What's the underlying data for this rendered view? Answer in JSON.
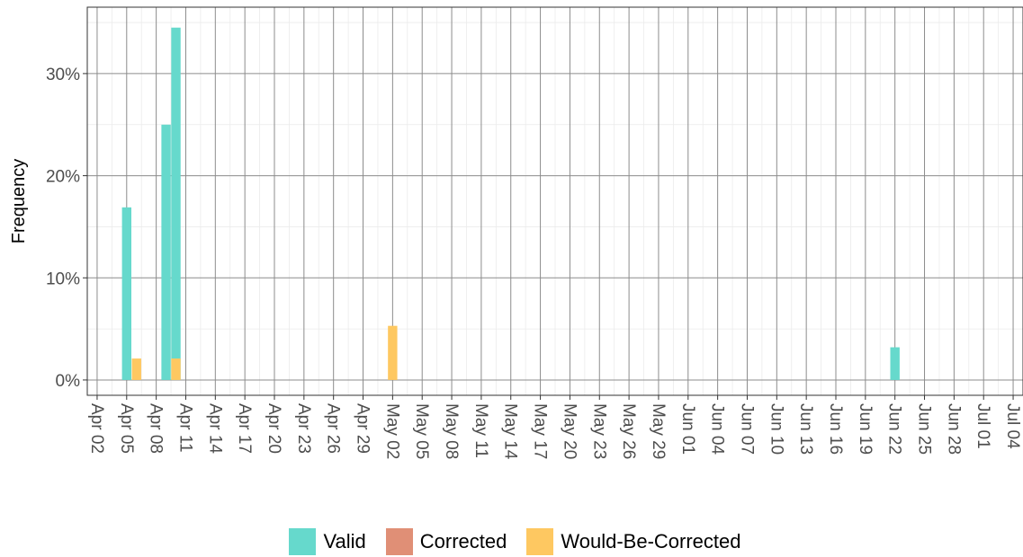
{
  "chart_data": {
    "type": "bar",
    "title": "",
    "xlabel": "",
    "ylabel": "Frequency",
    "y_tick_labels": [
      "0%",
      "10%",
      "20%",
      "30%"
    ],
    "y_ticks": [
      0,
      10,
      20,
      30
    ],
    "ylim": [
      -1.5,
      36.5
    ],
    "xlim": [
      "2020-04-01",
      "2020-07-05"
    ],
    "x_tick_labels": [
      "Apr 02",
      "Apr 05",
      "Apr 08",
      "Apr 11",
      "Apr 14",
      "Apr 17",
      "Apr 20",
      "Apr 23",
      "Apr 26",
      "Apr 29",
      "May 02",
      "May 05",
      "May 08",
      "May 11",
      "May 14",
      "May 17",
      "May 20",
      "May 23",
      "May 26",
      "May 29",
      "Jun 01",
      "Jun 04",
      "Jun 07",
      "Jun 10",
      "Jun 13",
      "Jun 16",
      "Jun 19",
      "Jun 22",
      "Jun 25",
      "Jun 28",
      "Jul 01",
      "Jul 04"
    ],
    "x_ticks": [
      "2020-04-02",
      "2020-04-05",
      "2020-04-08",
      "2020-04-11",
      "2020-04-14",
      "2020-04-17",
      "2020-04-20",
      "2020-04-23",
      "2020-04-26",
      "2020-04-29",
      "2020-05-02",
      "2020-05-05",
      "2020-05-08",
      "2020-05-11",
      "2020-05-14",
      "2020-05-17",
      "2020-05-20",
      "2020-05-23",
      "2020-05-26",
      "2020-05-29",
      "2020-06-01",
      "2020-06-04",
      "2020-06-07",
      "2020-06-10",
      "2020-06-13",
      "2020-06-16",
      "2020-06-19",
      "2020-06-22",
      "2020-06-25",
      "2020-06-28",
      "2020-07-01",
      "2020-07-04"
    ],
    "series": [
      {
        "name": "Valid",
        "color": "#66d9cc",
        "points": [
          {
            "x": "2020-04-05",
            "y": 16.9
          },
          {
            "x": "2020-04-09",
            "y": 25.0
          },
          {
            "x": "2020-04-10",
            "y": 34.5
          },
          {
            "x": "2020-06-22",
            "y": 3.2
          }
        ]
      },
      {
        "name": "Corrected",
        "color": "#e08f76",
        "points": []
      },
      {
        "name": "Would-Be-Corrected",
        "color": "#fec861",
        "points": [
          {
            "x": "2020-04-06",
            "y": 2.1
          },
          {
            "x": "2020-04-10",
            "y": 2.1
          },
          {
            "x": "2020-05-02",
            "y": 5.3
          }
        ]
      }
    ],
    "grid": true,
    "legend_position": "bottom"
  }
}
